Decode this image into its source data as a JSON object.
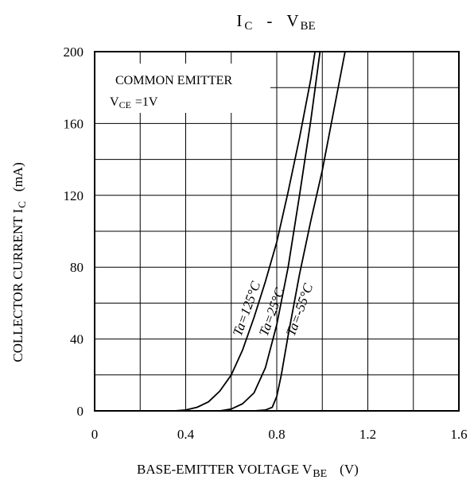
{
  "chart_data": {
    "type": "line",
    "title": {
      "main": "I",
      "main_sub": "C",
      "sep": "-",
      "second": "V",
      "second_sub": "BE"
    },
    "xlabel": {
      "text": "BASE-EMITTER VOLTAGE V",
      "sub": "BE",
      "unit": "(V)"
    },
    "ylabel": {
      "text": "COLLECTOR CURRENT I",
      "sub": "C",
      "unit": "(mA)"
    },
    "xlim": [
      0,
      1.6
    ],
    "ylim": [
      0,
      200
    ],
    "xticks": [
      "0",
      "0.4",
      "0.8",
      "1.2",
      "1.6"
    ],
    "yticks": [
      "0",
      "40",
      "80",
      "120",
      "160",
      "200"
    ],
    "grid": true,
    "annotation": {
      "line1": "COMMON EMITTER",
      "line2_prefix": "V",
      "line2_sub": "CE",
      "line2_suffix": "=1V"
    },
    "series": [
      {
        "name": "Ta=125°C",
        "points": [
          [
            0,
            0
          ],
          [
            0.35,
            0
          ],
          [
            0.4,
            0.5
          ],
          [
            0.45,
            2
          ],
          [
            0.5,
            5
          ],
          [
            0.55,
            11
          ],
          [
            0.6,
            20
          ],
          [
            0.65,
            34
          ],
          [
            0.7,
            52
          ],
          [
            0.75,
            72
          ],
          [
            0.8,
            94
          ],
          [
            0.85,
            122
          ],
          [
            0.9,
            152
          ],
          [
            0.95,
            185
          ],
          [
            0.968,
            200
          ]
        ]
      },
      {
        "name": "Ta=25°C",
        "points": [
          [
            0,
            0
          ],
          [
            0.55,
            0
          ],
          [
            0.6,
            1
          ],
          [
            0.65,
            4
          ],
          [
            0.7,
            10
          ],
          [
            0.75,
            24
          ],
          [
            0.8,
            48
          ],
          [
            0.85,
            80
          ],
          [
            0.9,
            120
          ],
          [
            0.95,
            162
          ],
          [
            0.99,
            200
          ]
        ]
      },
      {
        "name": "Ta=-55°C",
        "points": [
          [
            0,
            0
          ],
          [
            0.7,
            0
          ],
          [
            0.75,
            0.5
          ],
          [
            0.78,
            2
          ],
          [
            0.8,
            8
          ],
          [
            0.82,
            20
          ],
          [
            0.85,
            42
          ],
          [
            0.9,
            76
          ],
          [
            0.95,
            106
          ],
          [
            1.0,
            134
          ],
          [
            1.05,
            167
          ],
          [
            1.1,
            200
          ]
        ]
      }
    ]
  }
}
